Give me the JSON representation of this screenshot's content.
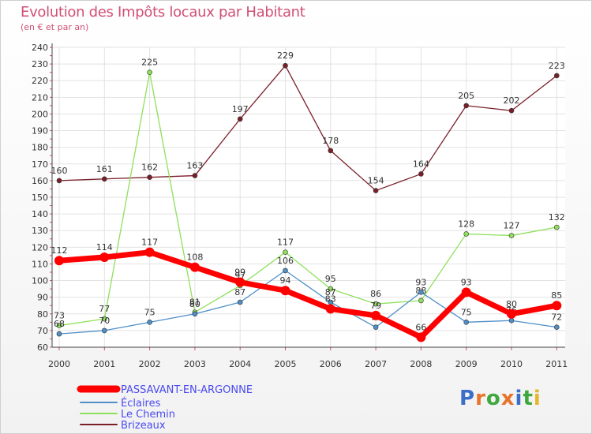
{
  "title": "Evolution des Impôts locaux par Habitant",
  "subtitle": "(en € et par an)",
  "logo": "Proxiti",
  "chart_data": {
    "type": "line",
    "title": "Evolution des Impôts locaux par Habitant",
    "subtitle": "(en € et par an)",
    "x": [
      "2000",
      "2001",
      "2002",
      "2003",
      "2004",
      "2005",
      "2006",
      "2007",
      "2008",
      "2009",
      "2010",
      "2011"
    ],
    "ylim": [
      60,
      240
    ],
    "yticks": [
      60,
      70,
      80,
      90,
      100,
      110,
      120,
      130,
      140,
      150,
      160,
      170,
      180,
      190,
      200,
      210,
      220,
      230,
      240
    ],
    "grid": true,
    "legend_position": "bottom-left",
    "series": [
      {
        "name": "PASSAVANT-EN-ARGONNE",
        "color": "#ff0000",
        "values": [
          112,
          114,
          117,
          108,
          99,
          94,
          83,
          79,
          66,
          93,
          80,
          85
        ]
      },
      {
        "name": "Éclaires",
        "color": "#4f8fc8",
        "values": [
          68,
          70,
          75,
          80,
          87,
          106,
          87,
          72,
          93,
          75,
          76,
          72
        ]
      },
      {
        "name": "Le Chemin",
        "color": "#8ee05a",
        "values": [
          73,
          77,
          225,
          81,
          97,
          117,
          95,
          86,
          88,
          128,
          127,
          132
        ]
      },
      {
        "name": "Brizeaux",
        "color": "#7a1f28",
        "values": [
          160,
          161,
          162,
          163,
          197,
          229,
          178,
          154,
          164,
          205,
          202,
          223
        ]
      }
    ]
  }
}
